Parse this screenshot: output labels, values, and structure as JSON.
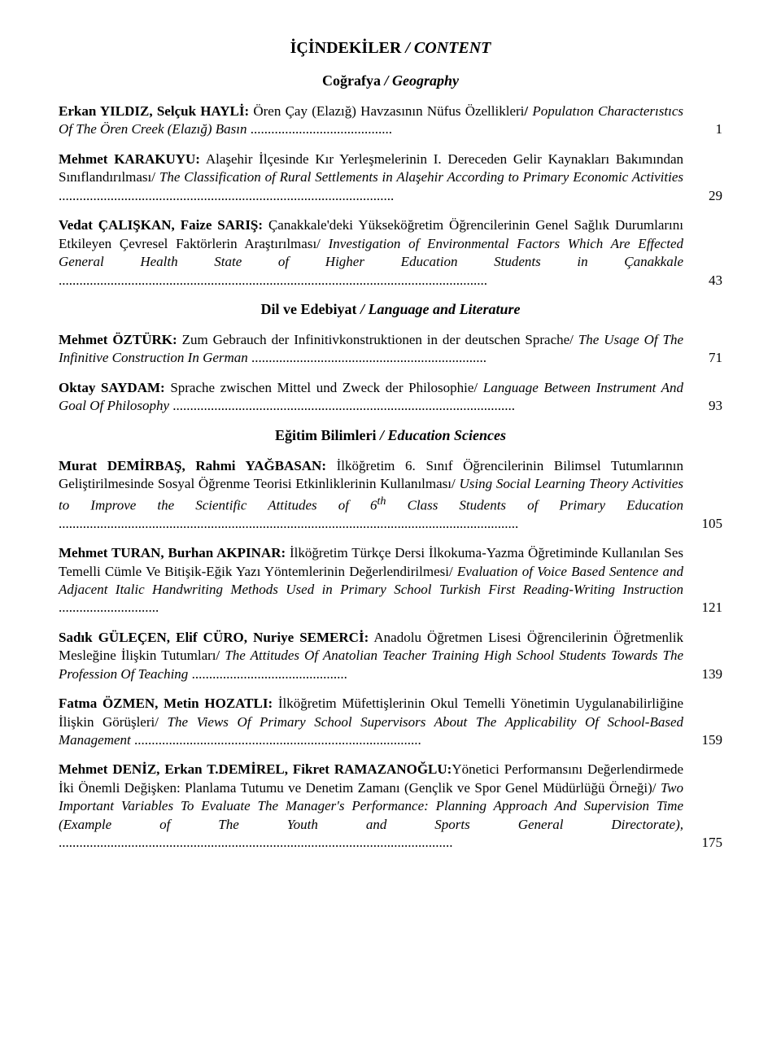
{
  "title": {
    "main": "İÇİNDEKİLER",
    "sep": " / ",
    "sub": "CONTENT"
  },
  "sections": {
    "geo": {
      "main": "Coğrafya",
      "sep": " / ",
      "sub": "Geography"
    },
    "lit": {
      "main": "Dil ve Edebiyat",
      "sep": " / ",
      "sub": "Language and Literature"
    },
    "edu": {
      "main": "Eğitim Bilimleri",
      "sep": " / ",
      "sub": "Education Sciences"
    }
  },
  "e1": {
    "auth": "Erkan YILDIZ, Selçuk HAYLİ:",
    "t": " Ören Çay (Elazığ) Havzasının Nüfus Özellikleri",
    "sl": "/ ",
    "en": "Populatıon Characterıstıcs Of The Ören Creek (Elazığ) Basın ",
    "dots": ".........................................",
    "page": "1"
  },
  "e2": {
    "auth": "Mehmet KARAKUYU:",
    "t": " Alaşehir İlçesinde Kır Yerleşmelerinin I. Dereceden Gelir Kaynakları Bakımından Sınıflandırılması/ ",
    "en": "The Classification of Rural Settlements in Alaşehir According to Primary Economic Activities ",
    "dots": ".................................................................................................",
    "page": "29"
  },
  "e3": {
    "auth": "Vedat ÇALIŞKAN, Faize SARIŞ:",
    "t": " Çanakkale'deki Yükseköğretim Öğrencilerinin Genel Sağlık Durumlarını Etkileyen Çevresel Faktörlerin Araştırılması/ ",
    "en": "Investigation of Environmental Factors Which Are Effected General Health State of Higher Education Students in Çanakkale ",
    "dots": "............................................................................................................................",
    "page": "43"
  },
  "e4": {
    "auth": "Mehmet ÖZTÜRK:",
    "t": " Zum Gebrauch der Infinitivkonstruktionen in der deutschen Sprache/ ",
    "en": "The Usage Of The Infinitive Construction In German ",
    "dots": "....................................................................",
    "page": "71"
  },
  "e5": {
    "auth": "Oktay SAYDAM:",
    "t": " Sprache zwischen Mittel und Zweck der Philosophie/ ",
    "en": "Language Between Instrument And Goal Of Philosophy ",
    "dots": "...................................................................................................",
    "page": "93"
  },
  "e6": {
    "auth": "Murat DEMİRBAŞ, Rahmi YAĞBASAN:",
    "t": " İlköğretim 6. Sınıf Öğrencilerinin Bilimsel Tutumlarının Geliştirilmesinde Sosyal Öğrenme Teorisi Etkinliklerinin Kullanılması/ ",
    "en1": "Using Social Learning Theory Activities to Improve the Scientific Attitudes of 6",
    "th": "th",
    "en2": " Class Students of Primary Education ",
    "dots": ".....................................................................................................................................",
    "page": "105"
  },
  "e7": {
    "auth": "Mehmet TURAN, Burhan AKPINAR:",
    "t": " İlköğretim Türkçe Dersi İlkokuma-Yazma Öğretiminde Kullanılan Ses Temelli Cümle Ve Bitişik-Eğik Yazı Yöntemlerinin Değerlendirilmesi/ ",
    "en": "Evaluation of Voice Based Sentence and Adjacent Italic Handwriting Methods Used in Primary School Turkish First Reading-Writing Instruction ",
    "dots": ".............................",
    "page": "121"
  },
  "e8": {
    "auth": "Sadık GÜLEÇEN, Elif CÜRO, Nuriye SEMERCİ:",
    "t": " Anadolu Öğretmen Lisesi Öğrencilerinin Öğretmenlik Mesleğine İlişkin Tutumları/ ",
    "en": "The Attitudes Of Anatolian Teacher Training High School Students Towards The Profession Of Teaching ",
    "dots": ".............................................",
    "page": "139"
  },
  "e9": {
    "auth": "Fatma ÖZMEN, Metin HOZATLI:",
    "t": " İlköğretim Müfettişlerinin Okul Temelli Yönetimin Uygulanabilirliğine İlişkin Görüşleri/ ",
    "en": "The Views Of Primary School Supervisors About The Applicability Of School-Based Management ",
    "dots": "...................................................................................",
    "page": "159"
  },
  "e10": {
    "auth": "Mehmet DENİZ, Erkan T.DEMİREL, Fikret RAMAZANOĞLU:",
    "t": "Yönetici Performansını Değerlendirmede İki Önemli Değişken: Planlama Tutumu ve Denetim Zamanı (Gençlik ve Spor Genel Müdürlüğü Örneği)/ ",
    "en": "Two Important Variables To Evaluate The Manager's Performance: Planning Approach And Supervision Time (Example of The Youth and Sports General Directorate), ",
    "dots": "..................................................................................................................",
    "page": "175"
  }
}
